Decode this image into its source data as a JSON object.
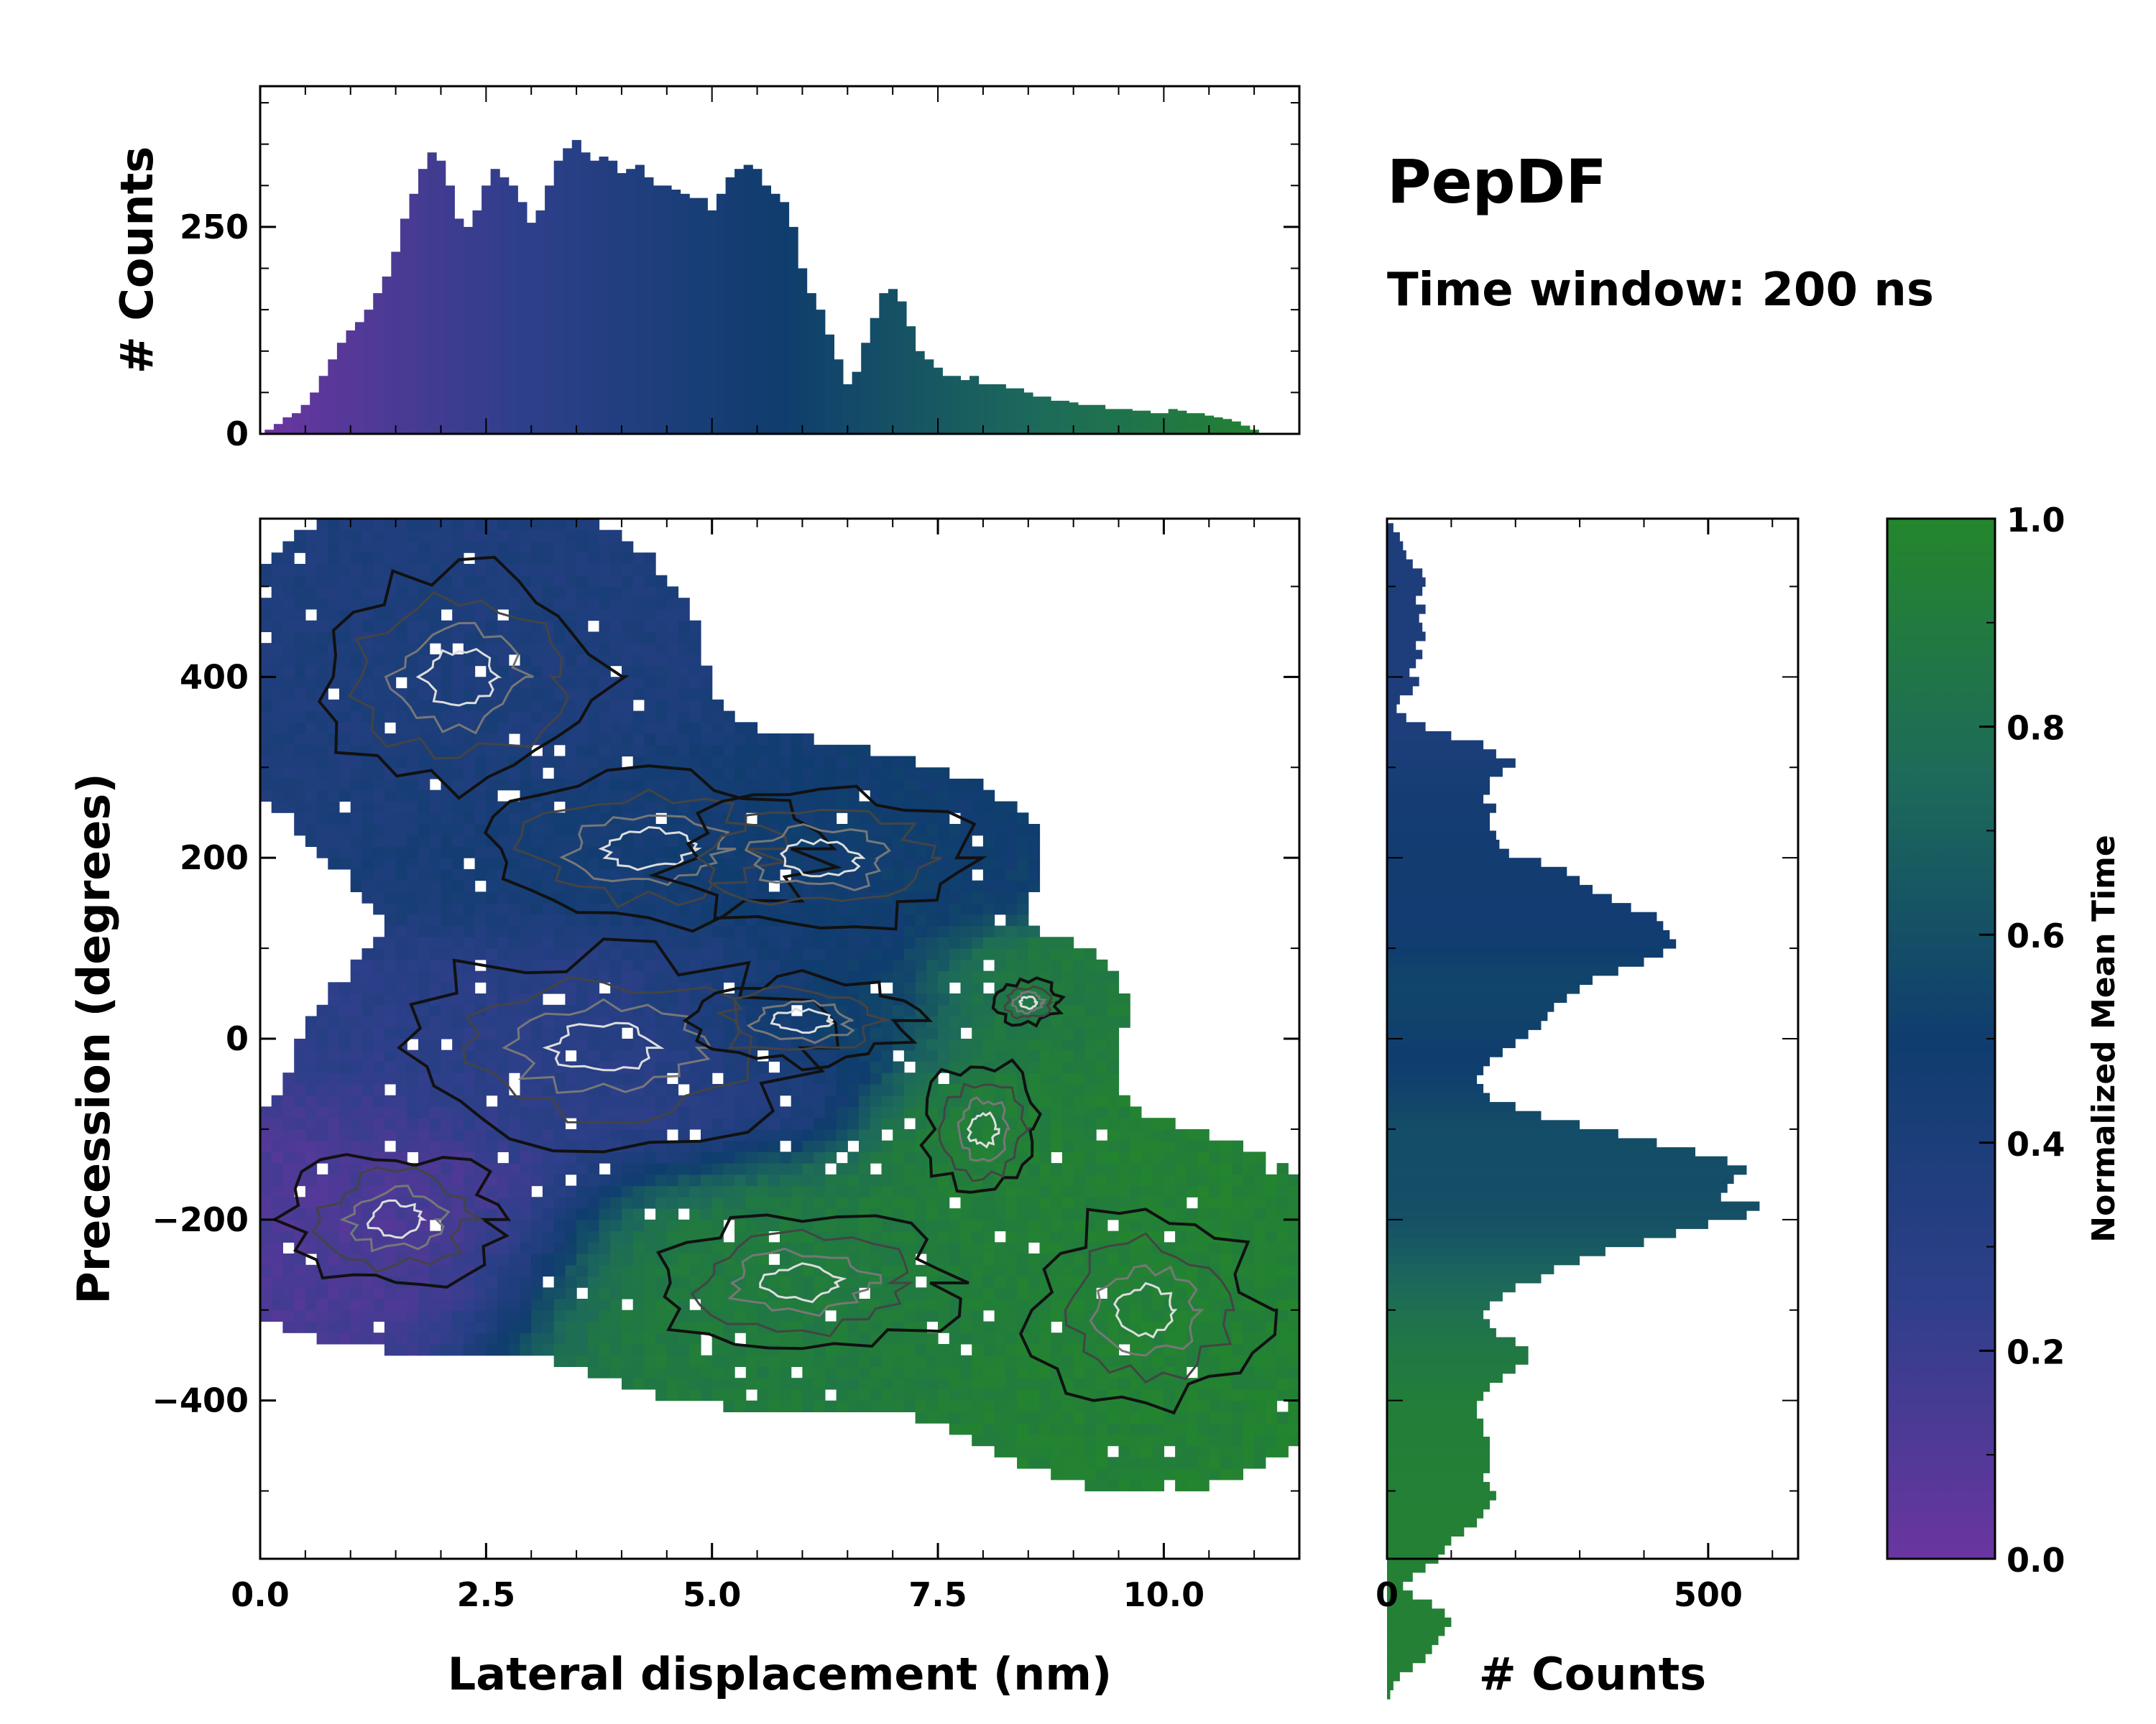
{
  "figure": {
    "title": "PepDF",
    "subtitle": "Time window: 200 ns"
  },
  "colors": {
    "purple": "#6a35a0",
    "indigo": "#2e3f8a",
    "navy": "#0f3d6e",
    "teal": "#1d6a5a",
    "green": "#24862c",
    "contour_dark": "#111111",
    "contour_gray": "#777777",
    "contour_light": "#dddddd"
  },
  "chart_data": [
    {
      "id": "top-histogram",
      "type": "bar",
      "xlabel": "",
      "ylabel": "# Counts",
      "xlim": [
        0,
        11.5
      ],
      "ylim": [
        0,
        420
      ],
      "yticks": [
        0,
        250
      ],
      "ytick_labels": [
        "0",
        "250"
      ],
      "bin_width": 0.1,
      "x_start": 0.1,
      "values": [
        5,
        12,
        20,
        25,
        35,
        50,
        70,
        90,
        110,
        125,
        135,
        150,
        170,
        190,
        220,
        260,
        290,
        320,
        340,
        330,
        300,
        260,
        250,
        270,
        300,
        320,
        310,
        300,
        280,
        255,
        270,
        300,
        330,
        345,
        355,
        340,
        330,
        335,
        330,
        315,
        320,
        325,
        310,
        300,
        300,
        295,
        290,
        285,
        285,
        270,
        290,
        310,
        320,
        325,
        320,
        300,
        290,
        280,
        250,
        200,
        170,
        150,
        120,
        90,
        60,
        75,
        110,
        140,
        170,
        175,
        160,
        130,
        100,
        90,
        80,
        70,
        70,
        65,
        70,
        60,
        60,
        60,
        55,
        55,
        50,
        45,
        45,
        40,
        40,
        38,
        35,
        35,
        35,
        30,
        30,
        30,
        28,
        28,
        25,
        25,
        30,
        28,
        25,
        25,
        22,
        20,
        18,
        15,
        10,
        5
      ]
    },
    {
      "id": "right-histogram",
      "type": "bar",
      "orientation": "horizontal",
      "xlabel": "# Counts",
      "xlim": [
        0,
        640
      ],
      "xticks": [
        0,
        500
      ],
      "xtick_labels": [
        "0",
        "500"
      ],
      "ylim": [
        -575,
        575
      ],
      "bin_height": 10,
      "y_start": 570,
      "values": [
        10,
        20,
        25,
        30,
        40,
        55,
        60,
        55,
        45,
        60,
        50,
        55,
        60,
        45,
        55,
        45,
        35,
        50,
        40,
        20,
        15,
        30,
        60,
        100,
        150,
        170,
        200,
        180,
        160,
        160,
        150,
        170,
        160,
        160,
        170,
        175,
        190,
        240,
        280,
        300,
        320,
        350,
        380,
        420,
        430,
        440,
        450,
        430,
        400,
        360,
        320,
        300,
        280,
        260,
        250,
        240,
        220,
        200,
        180,
        160,
        150,
        140,
        150,
        160,
        200,
        240,
        300,
        360,
        420,
        480,
        530,
        560,
        540,
        530,
        520,
        580,
        560,
        500,
        450,
        400,
        340,
        300,
        260,
        240,
        200,
        180,
        160,
        150,
        160,
        170,
        200,
        220,
        220,
        200,
        180,
        160,
        150,
        140,
        140,
        150,
        150,
        160,
        160,
        160,
        160,
        150,
        160,
        170,
        160,
        150,
        140,
        120,
        100,
        90,
        80,
        60,
        40,
        25,
        40,
        70,
        90,
        100,
        90,
        80,
        70,
        60,
        40,
        20,
        10,
        5
      ]
    },
    {
      "id": "main-2d-histogram",
      "type": "heatmap",
      "xlabel": "Lateral displacement (nm)",
      "ylabel": "Precession (degrees)",
      "xlim": [
        0,
        11.5
      ],
      "ylim": [
        -575,
        575
      ],
      "xticks": [
        0,
        2.5,
        5,
        7.5,
        10
      ],
      "xtick_labels": [
        "0.0",
        "2.5",
        "5.0",
        "7.5",
        "10.0"
      ],
      "yticks": [
        -400,
        -200,
        0,
        200,
        400
      ],
      "ytick_labels": [
        "−400",
        "−200",
        "0",
        "200",
        "400"
      ],
      "clusters": [
        {
          "x": 2.2,
          "y": 400,
          "sx": 1.3,
          "sy": 100,
          "time": 0.38,
          "weight": 0.8
        },
        {
          "x": 4.3,
          "y": 210,
          "sx": 1.4,
          "sy": 60,
          "time": 0.45,
          "weight": 0.9
        },
        {
          "x": 6.2,
          "y": 200,
          "sx": 1.1,
          "sy": 50,
          "time": 0.5,
          "weight": 1.0
        },
        {
          "x": 3.8,
          "y": -10,
          "sx": 1.5,
          "sy": 70,
          "time": 0.28,
          "weight": 1.0
        },
        {
          "x": 6.0,
          "y": 20,
          "sx": 1.0,
          "sy": 40,
          "time": 0.55,
          "weight": 0.8
        },
        {
          "x": 1.5,
          "y": -200,
          "sx": 1.1,
          "sy": 70,
          "time": 0.12,
          "weight": 0.7
        },
        {
          "x": 6.0,
          "y": -270,
          "sx": 1.6,
          "sy": 70,
          "time": 0.9,
          "weight": 0.7
        },
        {
          "x": 8.0,
          "y": -100,
          "sx": 0.7,
          "sy": 80,
          "time": 0.93,
          "weight": 0.6
        },
        {
          "x": 9.8,
          "y": -300,
          "sx": 1.2,
          "sy": 100,
          "time": 0.95,
          "weight": 0.7
        },
        {
          "x": 8.5,
          "y": 40,
          "sx": 0.6,
          "sy": 40,
          "time": 0.9,
          "weight": 0.4
        }
      ]
    },
    {
      "id": "colorbar",
      "type": "colorbar",
      "label": "Normalized Mean Time",
      "range": [
        0,
        1
      ],
      "ticks": [
        0,
        0.2,
        0.4,
        0.6,
        0.8,
        1.0
      ],
      "tick_labels": [
        "0.0",
        "0.2",
        "0.4",
        "0.6",
        "0.8",
        "1.0"
      ]
    }
  ]
}
